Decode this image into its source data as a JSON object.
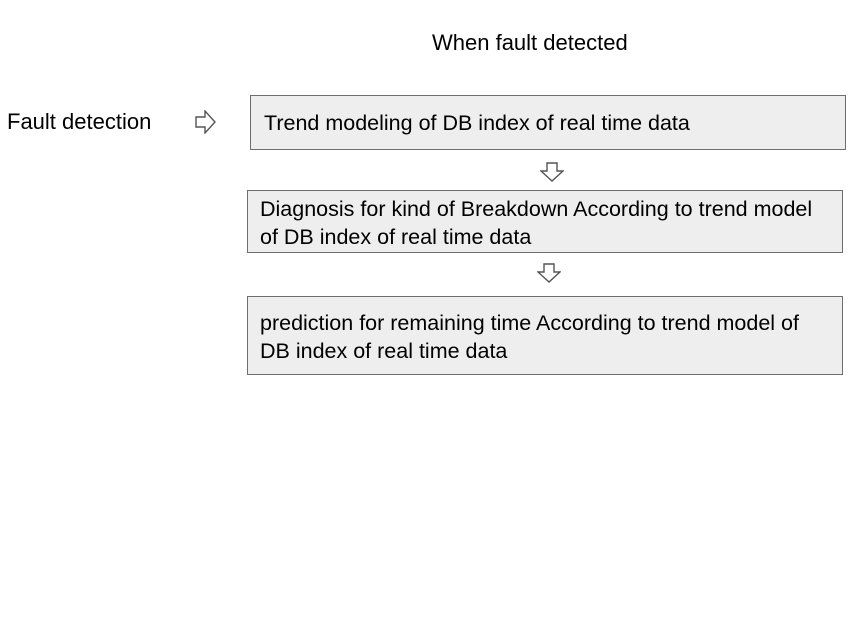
{
  "header": {
    "title": "When fault detected"
  },
  "side": {
    "label": "Fault detection"
  },
  "steps": [
    {
      "text": "Trend modeling of DB index of real time data"
    },
    {
      "text": "Diagnosis for kind of Breakdown According to trend model of DB index of real time data"
    },
    {
      "text": "prediction for remaining time According to trend model of DB index of real time data"
    }
  ],
  "colors": {
    "box_fill": "#eeeeee",
    "box_border": "#6e6e6e",
    "arrow_fill": "#ffffff",
    "arrow_stroke": "#555555",
    "text": "#000000"
  },
  "icons": {
    "side_arrow": "right-arrow-icon",
    "step_arrow": "down-arrow-icon"
  }
}
